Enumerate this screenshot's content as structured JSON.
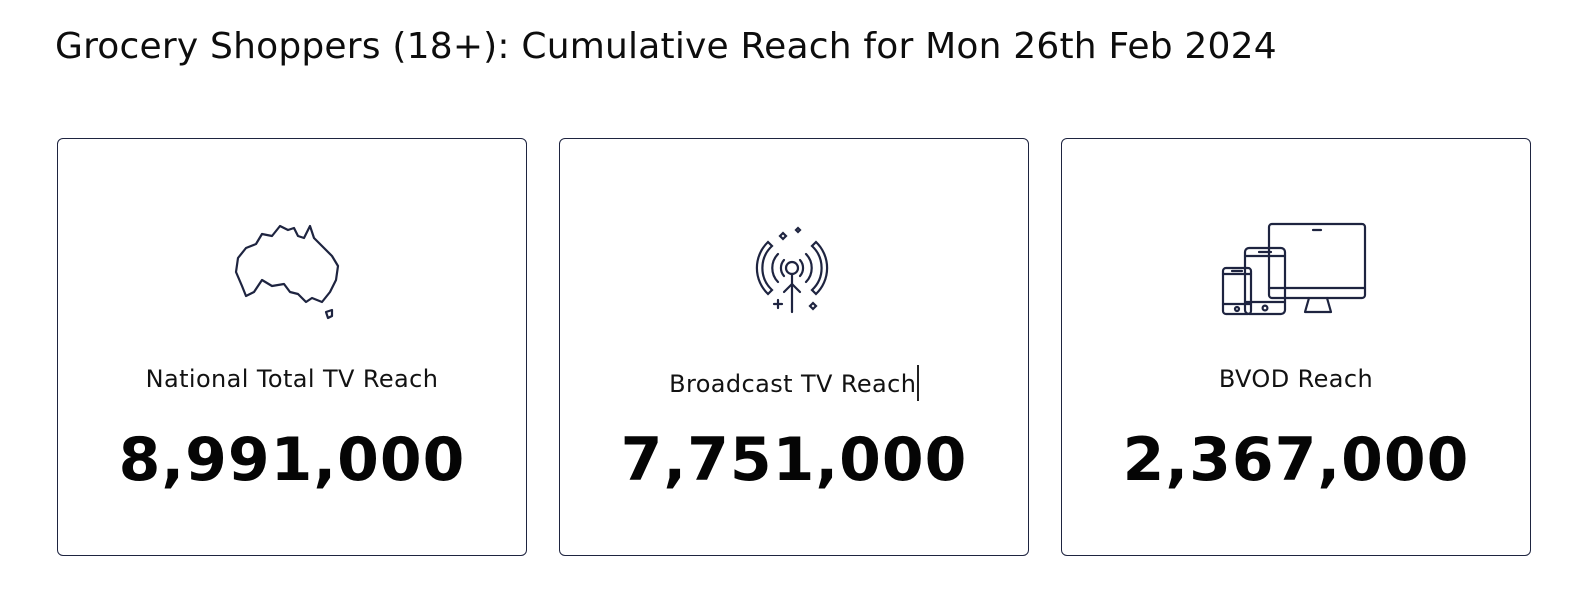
{
  "page": {
    "title": "Grocery Shoppers (18+): Cumulative Reach for Mon 26th Feb 2024"
  },
  "cards": [
    {
      "icon": "australia-map-icon",
      "label": "National Total TV Reach",
      "value": "8,991,000"
    },
    {
      "icon": "broadcast-antenna-icon",
      "label": "Broadcast TV Reach",
      "value": "7,751,000"
    },
    {
      "icon": "multi-device-icon",
      "label": "BVOD Reach",
      "value": "2,367,000"
    }
  ],
  "colors": {
    "card_border": "#1e2440",
    "icon_stroke": "#1e2440",
    "text": "#0a0a0a"
  }
}
